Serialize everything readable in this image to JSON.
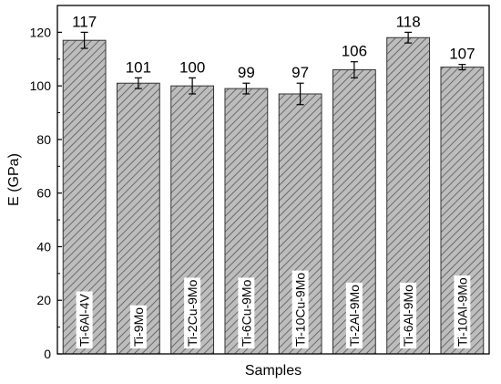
{
  "chart_data": {
    "type": "bar",
    "title": "",
    "xlabel": "Samples",
    "ylabel": "E (GPa)",
    "ylim": [
      0,
      130
    ],
    "yticks": [
      0,
      20,
      40,
      60,
      80,
      100,
      120
    ],
    "grid": false,
    "legend": "none",
    "bar_fill": "diagonal hatch",
    "bar_color": "#bdbdbd",
    "hatch_color": "#555555",
    "error_bars": true,
    "categories": [
      "Ti-6Al-4V",
      "Ti-9Mo",
      "Ti-2Cu-9Mo",
      "Ti-6Cu-9Mo",
      "Ti-10Cu-9Mo",
      "Ti-2Al-9Mo",
      "Ti-6Al-9Mo",
      "Ti-10Al-9Mo"
    ],
    "values": [
      117,
      101,
      100,
      99,
      97,
      106,
      118,
      107
    ],
    "value_labels": [
      "117",
      "101",
      "100",
      "99",
      "97",
      "106",
      "118",
      "107"
    ],
    "errors": [
      3,
      2,
      3,
      2,
      4,
      3,
      2,
      1
    ]
  }
}
